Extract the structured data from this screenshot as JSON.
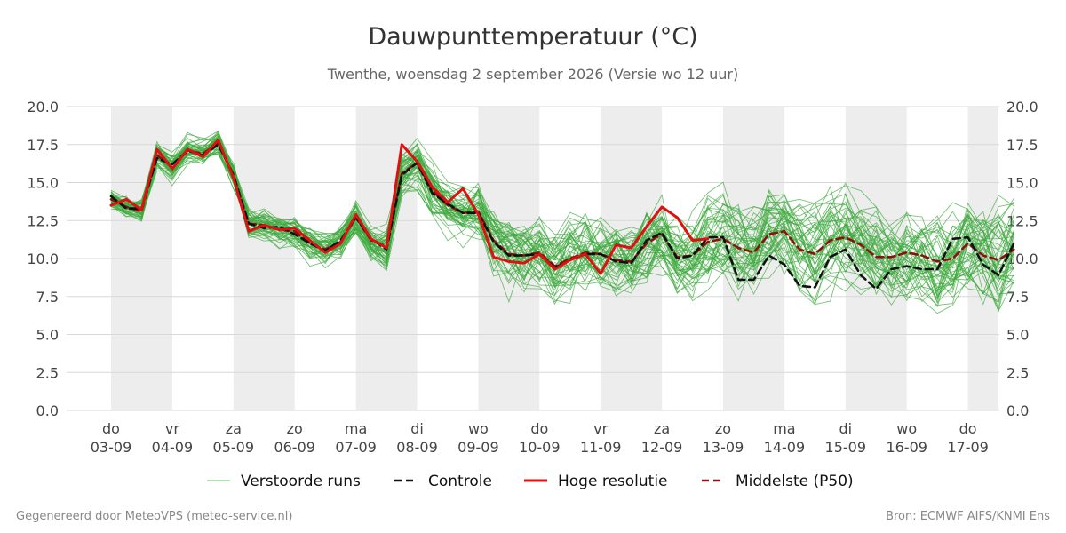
{
  "chart_data": {
    "type": "line",
    "title": "Dauwpunttemperatuur (°C)",
    "subtitle": "Twenthe, woensdag  2 september 2026 (Versie wo 12 uur)",
    "ylim": [
      0,
      20
    ],
    "yticks": [
      "0.0",
      "2.5",
      "5.0",
      "7.5",
      "10.0",
      "12.5",
      "15.0",
      "17.5",
      "20.0"
    ],
    "xlim": [
      0,
      14.5
    ],
    "x_ticks": [
      {
        "day": "do",
        "date": "03-09"
      },
      {
        "day": "vr",
        "date": "04-09"
      },
      {
        "day": "za",
        "date": "05-09"
      },
      {
        "day": "zo",
        "date": "06-09"
      },
      {
        "day": "ma",
        "date": "07-09"
      },
      {
        "day": "di",
        "date": "08-09"
      },
      {
        "day": "wo",
        "date": "09-09"
      },
      {
        "day": "do",
        "date": "10-09"
      },
      {
        "day": "vr",
        "date": "11-09"
      },
      {
        "day": "za",
        "date": "12-09"
      },
      {
        "day": "zo",
        "date": "13-09"
      },
      {
        "day": "ma",
        "date": "14-09"
      },
      {
        "day": "di",
        "date": "15-09"
      },
      {
        "day": "wo",
        "date": "16-09"
      },
      {
        "day": "do",
        "date": "17-09"
      }
    ],
    "shaded_days": [
      [
        0,
        1
      ],
      [
        2,
        3
      ],
      [
        4,
        5
      ],
      [
        6,
        7
      ],
      [
        8,
        9
      ],
      [
        10,
        11
      ],
      [
        12,
        13
      ],
      [
        14,
        14.5
      ]
    ],
    "x_step_days": 0.25,
    "series": [
      {
        "name": "Hoge resolutie",
        "color": "#dd1111",
        "dash": "solid",
        "values": [
          13.5,
          13.9,
          13.2,
          17.2,
          15.9,
          17.2,
          16.7,
          17.8,
          15.3,
          11.8,
          12.2,
          11.9,
          12.0,
          11.2,
          10.4,
          11.0,
          12.9,
          11.3,
          10.7,
          17.5,
          16.4,
          14.7,
          13.7,
          14.6,
          12.9,
          10.1,
          9.8,
          9.7,
          10.3,
          9.3,
          9.9,
          10.3,
          9.0,
          10.9,
          10.7,
          12.1,
          13.4,
          12.7,
          11.2,
          11.3
        ]
      },
      {
        "name": "Controle",
        "color": "#111111",
        "dash": "dash",
        "values": [
          14.1,
          13.3,
          13.3,
          16.6,
          16.2,
          17.1,
          16.8,
          17.5,
          15.5,
          12.3,
          12.0,
          12.1,
          11.6,
          11.0,
          10.5,
          11.2,
          12.7,
          11.3,
          10.6,
          15.5,
          16.3,
          14.3,
          13.6,
          13.0,
          13.0,
          11.1,
          10.2,
          10.2,
          10.3,
          9.4,
          9.9,
          10.3,
          10.3,
          9.8,
          9.7,
          11.2,
          11.7,
          10.0,
          10.2,
          11.4,
          11.4,
          8.6,
          8.6,
          10.2,
          9.6,
          8.2,
          8.1,
          10.1,
          10.6,
          8.9,
          8.0,
          9.3,
          9.5,
          9.3,
          9.3,
          11.3,
          11.4,
          9.6,
          8.9,
          11.0
        ]
      },
      {
        "name": "Middelste (P50)",
        "color": "#8b1111",
        "dash": "dash",
        "values": [
          13.9,
          13.4,
          13.1,
          16.8,
          16.0,
          17.1,
          16.9,
          17.6,
          15.4,
          12.3,
          12.2,
          11.9,
          11.8,
          11.0,
          10.6,
          11.1,
          12.7,
          11.2,
          10.8,
          15.6,
          16.3,
          14.5,
          13.5,
          13.0,
          13.1,
          11.2,
          10.3,
          10.2,
          10.4,
          9.5,
          10.0,
          10.4,
          10.3,
          9.9,
          9.8,
          11.0,
          11.6,
          10.1,
          10.2,
          11.1,
          11.3,
          10.7,
          10.4,
          11.6,
          11.8,
          10.6,
          10.3,
          11.2,
          11.4,
          10.9,
          10.1,
          10.1,
          10.4,
          10.2,
          9.8,
          10.0,
          11.0,
          10.2,
          9.9,
          10.6
        ]
      }
    ],
    "legend": [
      {
        "label": "Verstoorde runs",
        "color": "#3daa3d",
        "style": "thin"
      },
      {
        "label": "Controle",
        "color": "#111111",
        "style": "dash"
      },
      {
        "label": "Hoge resolutie",
        "color": "#dd1111",
        "style": "solid"
      },
      {
        "label": "Middelste (P50)",
        "color": "#8b1111",
        "style": "dash"
      }
    ],
    "legend_position": "bottom-center",
    "ensemble": {
      "name": "Verstoorde runs",
      "color": "#3daa3d",
      "member_count": 50
    },
    "grid": true
  },
  "footer": {
    "left": "Gegenereerd door MeteoVPS (meteo-service.nl)",
    "right": "Bron: ECMWF AIFS/KNMI Ens"
  }
}
